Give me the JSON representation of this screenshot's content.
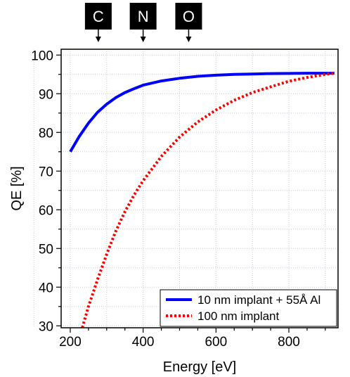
{
  "chart_data": {
    "type": "line",
    "title": "",
    "xlabel": "Energy [eV]",
    "ylabel": "QE [%]",
    "xlim": [
      175,
      935
    ],
    "ylim": [
      29.5,
      101.5
    ],
    "x_ticks": [
      200,
      400,
      600,
      800
    ],
    "y_ticks": [
      30,
      40,
      50,
      60,
      70,
      80,
      90,
      100
    ],
    "grid": true,
    "legend_position": "bottom-right",
    "annotations": [
      {
        "label": "C",
        "x": 277
      },
      {
        "label": "N",
        "x": 400
      },
      {
        "label": "O",
        "x": 525
      }
    ],
    "series": [
      {
        "name": "10 nm implant + 55Å Al",
        "color": "#0000ff",
        "style": "solid",
        "x": [
          200,
          225,
          250,
          275,
          300,
          325,
          350,
          375,
          400,
          450,
          500,
          550,
          600,
          650,
          700,
          750,
          800,
          850,
          900,
          925
        ],
        "y": [
          75.0,
          79.0,
          82.4,
          85.2,
          87.3,
          89.0,
          90.3,
          91.3,
          92.2,
          93.3,
          94.0,
          94.5,
          94.8,
          95.0,
          95.1,
          95.2,
          95.25,
          95.3,
          95.3,
          95.3
        ]
      },
      {
        "name": "100 nm implant",
        "color": "#ff0000",
        "style": "dotted",
        "x": [
          233,
          250,
          275,
          300,
          325,
          350,
          375,
          400,
          450,
          500,
          550,
          600,
          650,
          700,
          750,
          800,
          850,
          900,
          925
        ],
        "y": [
          29.5,
          35.0,
          42.0,
          48.5,
          54.5,
          59.5,
          63.8,
          67.5,
          73.8,
          78.8,
          82.7,
          85.8,
          88.3,
          90.3,
          91.8,
          93.2,
          94.2,
          95.0,
          95.3
        ]
      }
    ]
  }
}
